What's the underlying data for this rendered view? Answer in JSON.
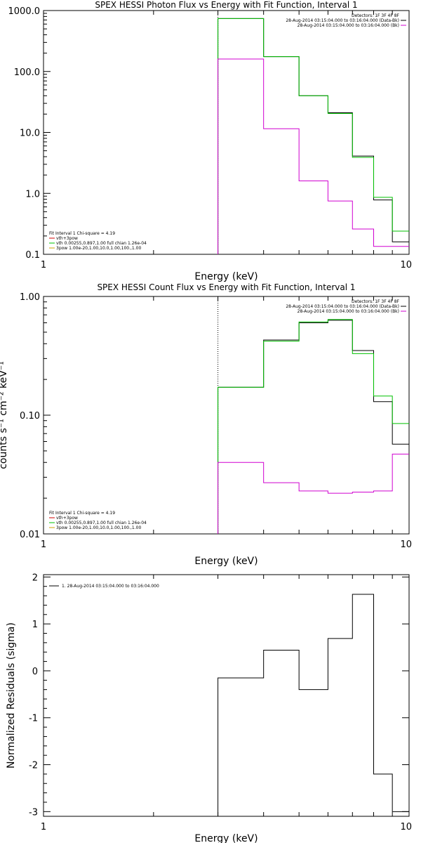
{
  "chart_data": [
    {
      "type": "line",
      "title": "SPEX HESSI Photon Flux vs Energy with Fit Function, Interval 1",
      "xlabel": "Energy (keV)",
      "ylabel": "",
      "xscale": "log",
      "yscale": "log",
      "xlim": [
        1,
        10
      ],
      "ylim": [
        0.1,
        1000
      ],
      "x_tick_labels": [
        "1",
        "10"
      ],
      "y_tick_labels": [
        "1000.0",
        "100.0",
        "10.0",
        "1.0",
        "0.1"
      ],
      "marker_line_x": 3.0,
      "bin_edges": [
        3.0,
        4.0,
        5.0,
        6.0,
        7.0,
        8.0,
        9.0,
        10.0
      ],
      "series": [
        {
          "name": "data",
          "color": "#000000",
          "values": [
            740,
            175,
            40,
            21,
            4.1,
            0.78,
            0.16
          ]
        },
        {
          "name": "vth+3pow",
          "color": "#00c000",
          "values": [
            740,
            175,
            40,
            20.5,
            3.9,
            0.86,
            0.24
          ]
        },
        {
          "name": "vth",
          "color": "#d000d0",
          "values": [
            160,
            11.5,
            1.6,
            0.75,
            0.26,
            0.135,
            0.135
          ]
        }
      ],
      "legend_topright": [
        {
          "text": "Detectors: 1F 3F 4F 8F",
          "color": ""
        },
        {
          "text": "28-Aug-2014 03:15:04.000 to 03:16:04.000 (Data-Bk)",
          "color": "#000000"
        },
        {
          "text": "28-Aug-2014 03:15:04.000 to 03:16:04.000 (Bk)",
          "color": "#d000d0"
        }
      ],
      "legend_bottomleft": [
        {
          "text": "Fit Interval 1   Chi-square = 4.19",
          "color": ""
        },
        {
          "text": "vth+3pow",
          "color": "#d00000"
        },
        {
          "text": "vth 0.00255,0.897,1.00  full chian 1.26e-04",
          "color": "#00c000"
        },
        {
          "text": "3pow 1.00e-20,1.00,10.0,1.00,100.,1.00",
          "color": "#d0a000"
        }
      ]
    },
    {
      "type": "line",
      "title": "SPEX HESSI Count Flux vs Energy with Fit Function, Interval 1",
      "xlabel": "Energy (keV)",
      "ylabel": "counts s⁻¹ cm⁻² keV⁻¹",
      "xscale": "log",
      "yscale": "log",
      "xlim": [
        1,
        10
      ],
      "ylim": [
        0.01,
        1
      ],
      "x_tick_labels": [
        "1",
        "10"
      ],
      "y_tick_labels": [
        "1.00",
        "0.10",
        "0.01"
      ],
      "marker_line_x": 3.0,
      "bin_edges": [
        3.0,
        4.0,
        5.0,
        6.0,
        7.0,
        8.0,
        9.0,
        10.0
      ],
      "series": [
        {
          "name": "data",
          "color": "#000000",
          "values": [
            0.172,
            0.43,
            0.6,
            0.63,
            0.35,
            0.13,
            0.057
          ]
        },
        {
          "name": "vth+3pow",
          "color": "#00c000",
          "values": [
            0.172,
            0.42,
            0.61,
            0.64,
            0.33,
            0.145,
            0.085
          ]
        },
        {
          "name": "background",
          "color": "#d000d0",
          "values": [
            0.04,
            0.027,
            0.023,
            0.022,
            0.0225,
            0.023,
            0.047
          ]
        }
      ],
      "legend_topright": [
        {
          "text": "Detectors: 1F 3F 4F 8F",
          "color": ""
        },
        {
          "text": "28-Aug-2014 03:15:04.000 to 03:16:04.000 (Data-Bk)",
          "color": "#000000"
        },
        {
          "text": "28-Aug-2014 03:15:04.000 to 03:16:04.000 (Bk)",
          "color": "#d000d0"
        }
      ],
      "legend_bottomleft": [
        {
          "text": "Fit Interval 1   Chi-square = 4.19",
          "color": ""
        },
        {
          "text": "vth+3pow",
          "color": "#d00000"
        },
        {
          "text": "vth 0.00255,0.897,1.00  full chian 1.26e-04",
          "color": "#00c000"
        },
        {
          "text": "3pow 1.00e-20,1.00,10.0,1.00,100.,1.00",
          "color": "#d0a000"
        }
      ]
    },
    {
      "type": "line",
      "title": "",
      "xlabel": "Energy (keV)",
      "ylabel": "Normalized Residuals (sigma)",
      "xscale": "log",
      "yscale": "linear",
      "xlim": [
        1,
        10
      ],
      "ylim": [
        -3.1,
        2.05
      ],
      "x_tick_labels": [
        "1",
        "10"
      ],
      "y_ticks": [
        -3,
        -2,
        -1,
        0,
        1,
        2
      ],
      "y_tick_labels": [
        "-3",
        "-2",
        "-1",
        "0",
        "1",
        "2"
      ],
      "bin_edges": [
        3.0,
        4.0,
        5.0,
        6.0,
        7.0,
        8.0,
        9.0,
        10.0
      ],
      "series": [
        {
          "name": "1. 28-Aug-2014 03:15:04.000 to 03:16:04.000",
          "color": "#000000",
          "values": [
            -0.15,
            0.44,
            -0.4,
            0.69,
            1.63,
            -2.2,
            -3.0
          ]
        }
      ],
      "legend_topright": [],
      "legend_bottomleft": [],
      "legend_topleft": [
        {
          "text": "1. 28-Aug-2014 03:15:04.000 to 03:16:04.000",
          "color": "#000000"
        }
      ]
    }
  ]
}
